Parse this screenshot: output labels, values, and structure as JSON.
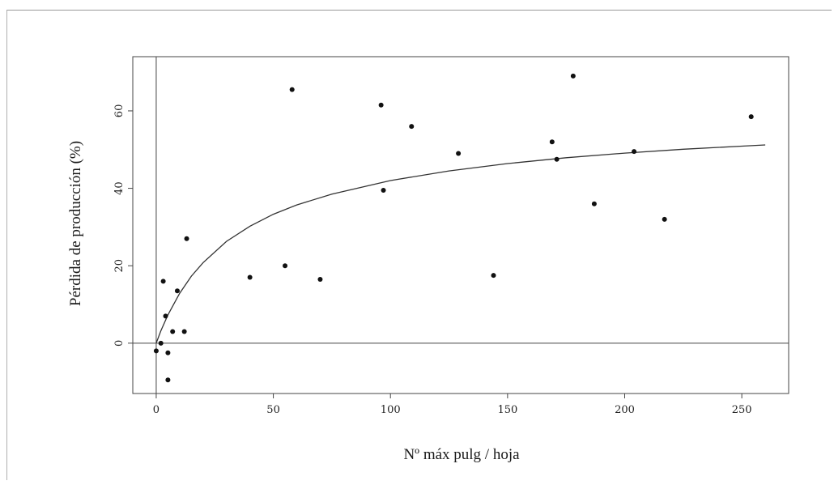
{
  "chart_data": {
    "type": "scatter",
    "title": "",
    "xlabel": "Nº máx pulg / hoja",
    "ylabel": "Pérdida de producción (%)",
    "xlim": [
      -10,
      270
    ],
    "ylim": [
      -13,
      74
    ],
    "xticks": [
      0,
      50,
      100,
      150,
      200,
      250
    ],
    "yticks": [
      0,
      20,
      40,
      60
    ],
    "reference_lines": {
      "x": 0,
      "y": 0
    },
    "points": [
      {
        "x": 0,
        "y": -2
      },
      {
        "x": 2,
        "y": 0
      },
      {
        "x": 3,
        "y": 16
      },
      {
        "x": 4,
        "y": 7
      },
      {
        "x": 5,
        "y": -2.5
      },
      {
        "x": 5,
        "y": -9.5
      },
      {
        "x": 7,
        "y": 3
      },
      {
        "x": 9,
        "y": 13.5
      },
      {
        "x": 12,
        "y": 3
      },
      {
        "x": 13,
        "y": 27
      },
      {
        "x": 40,
        "y": 17
      },
      {
        "x": 55,
        "y": 20
      },
      {
        "x": 58,
        "y": 65.5
      },
      {
        "x": 70,
        "y": 16.5
      },
      {
        "x": 96,
        "y": 61.5
      },
      {
        "x": 97,
        "y": 39.5
      },
      {
        "x": 109,
        "y": 56
      },
      {
        "x": 129,
        "y": 49
      },
      {
        "x": 144,
        "y": 17.5
      },
      {
        "x": 169,
        "y": 52
      },
      {
        "x": 171,
        "y": 47.5
      },
      {
        "x": 178,
        "y": 69
      },
      {
        "x": 187,
        "y": 36
      },
      {
        "x": 204,
        "y": 49.5
      },
      {
        "x": 217,
        "y": 32
      },
      {
        "x": 254,
        "y": 58.5
      }
    ],
    "fit_curve": {
      "x": [
        0,
        2,
        5,
        10,
        15,
        20,
        30,
        40,
        50,
        60,
        75,
        100,
        125,
        150,
        175,
        200,
        225,
        250,
        260
      ],
      "y": [
        0,
        3.2,
        7.3,
        12.9,
        17.3,
        20.8,
        26.3,
        30.2,
        33.3,
        35.7,
        38.5,
        42.0,
        44.5,
        46.4,
        47.9,
        49.1,
        50.1,
        50.9,
        51.2
      ]
    }
  },
  "colors": {
    "point": "#111111",
    "curve": "#333333",
    "axis": "#444444"
  }
}
